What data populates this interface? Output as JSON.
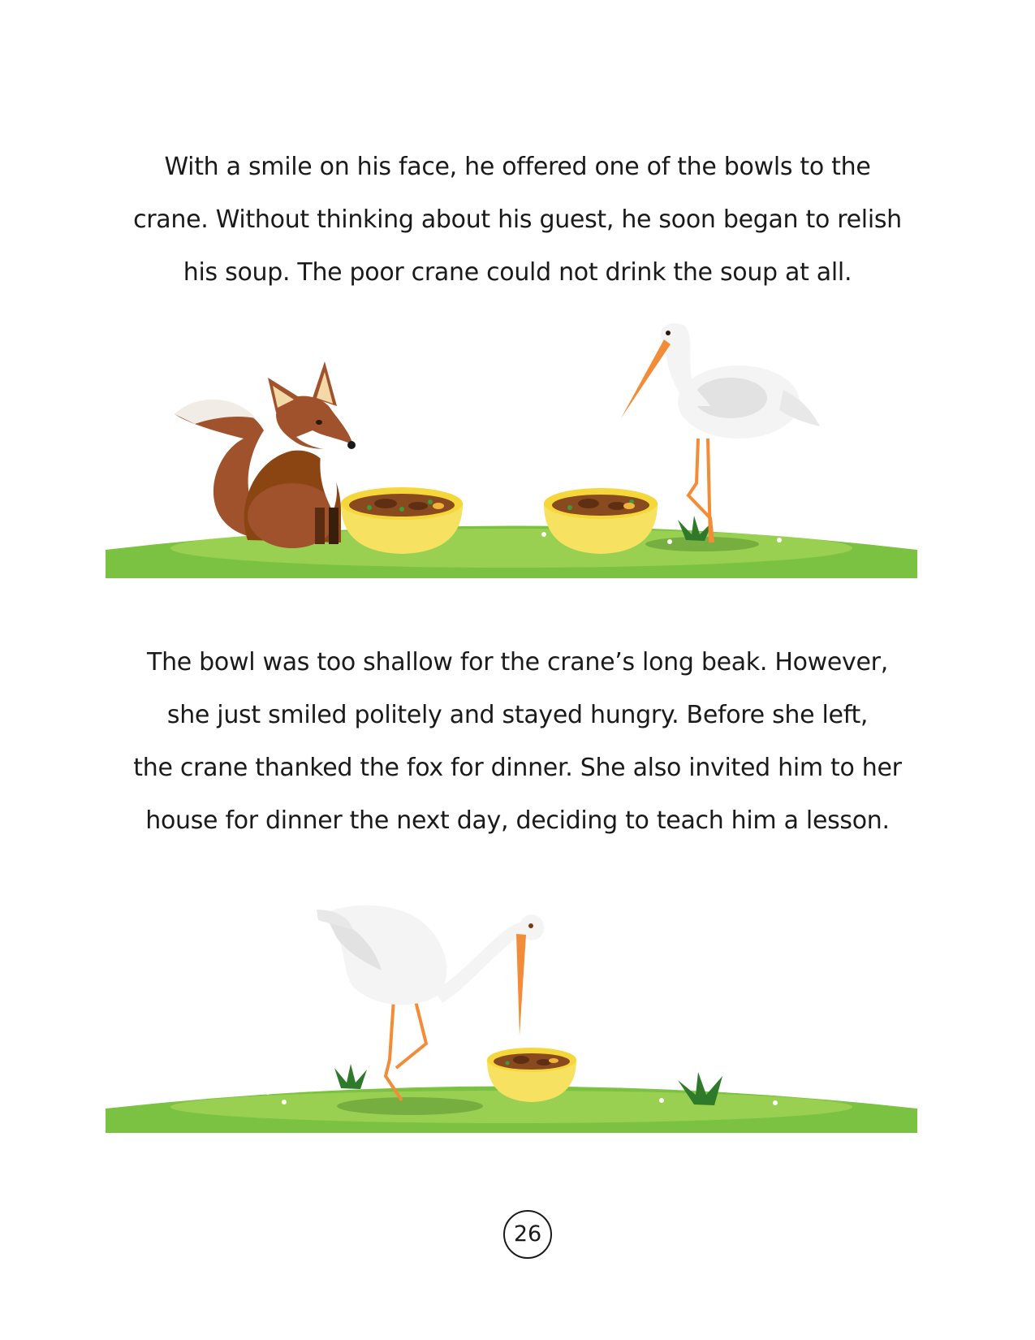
{
  "paragraphs": [
    {
      "lines": [
        "With a smile on his face, he offered one of the bowls to the",
        "crane. Without thinking about his guest, he soon began to relish",
        "his soup. The poor crane could not drink the soup at all."
      ]
    },
    {
      "lines": [
        "The bowl was too shallow for the crane’s long beak. However,",
        "she just smiled politely and stayed hungry. Before she left,",
        "the crane thanked the fox for dinner. She also invited him to her",
        "house for dinner the next day, deciding to teach him a lesson."
      ]
    }
  ],
  "page_number": "26",
  "colors": {
    "grass": "#7cc242",
    "grass_light": "#a5d65a",
    "bowl": "#f7e160",
    "soup": "#8a4a1f",
    "fox": "#a0522d",
    "crane_beak": "#f28c38",
    "text": "#1a1a1a"
  }
}
